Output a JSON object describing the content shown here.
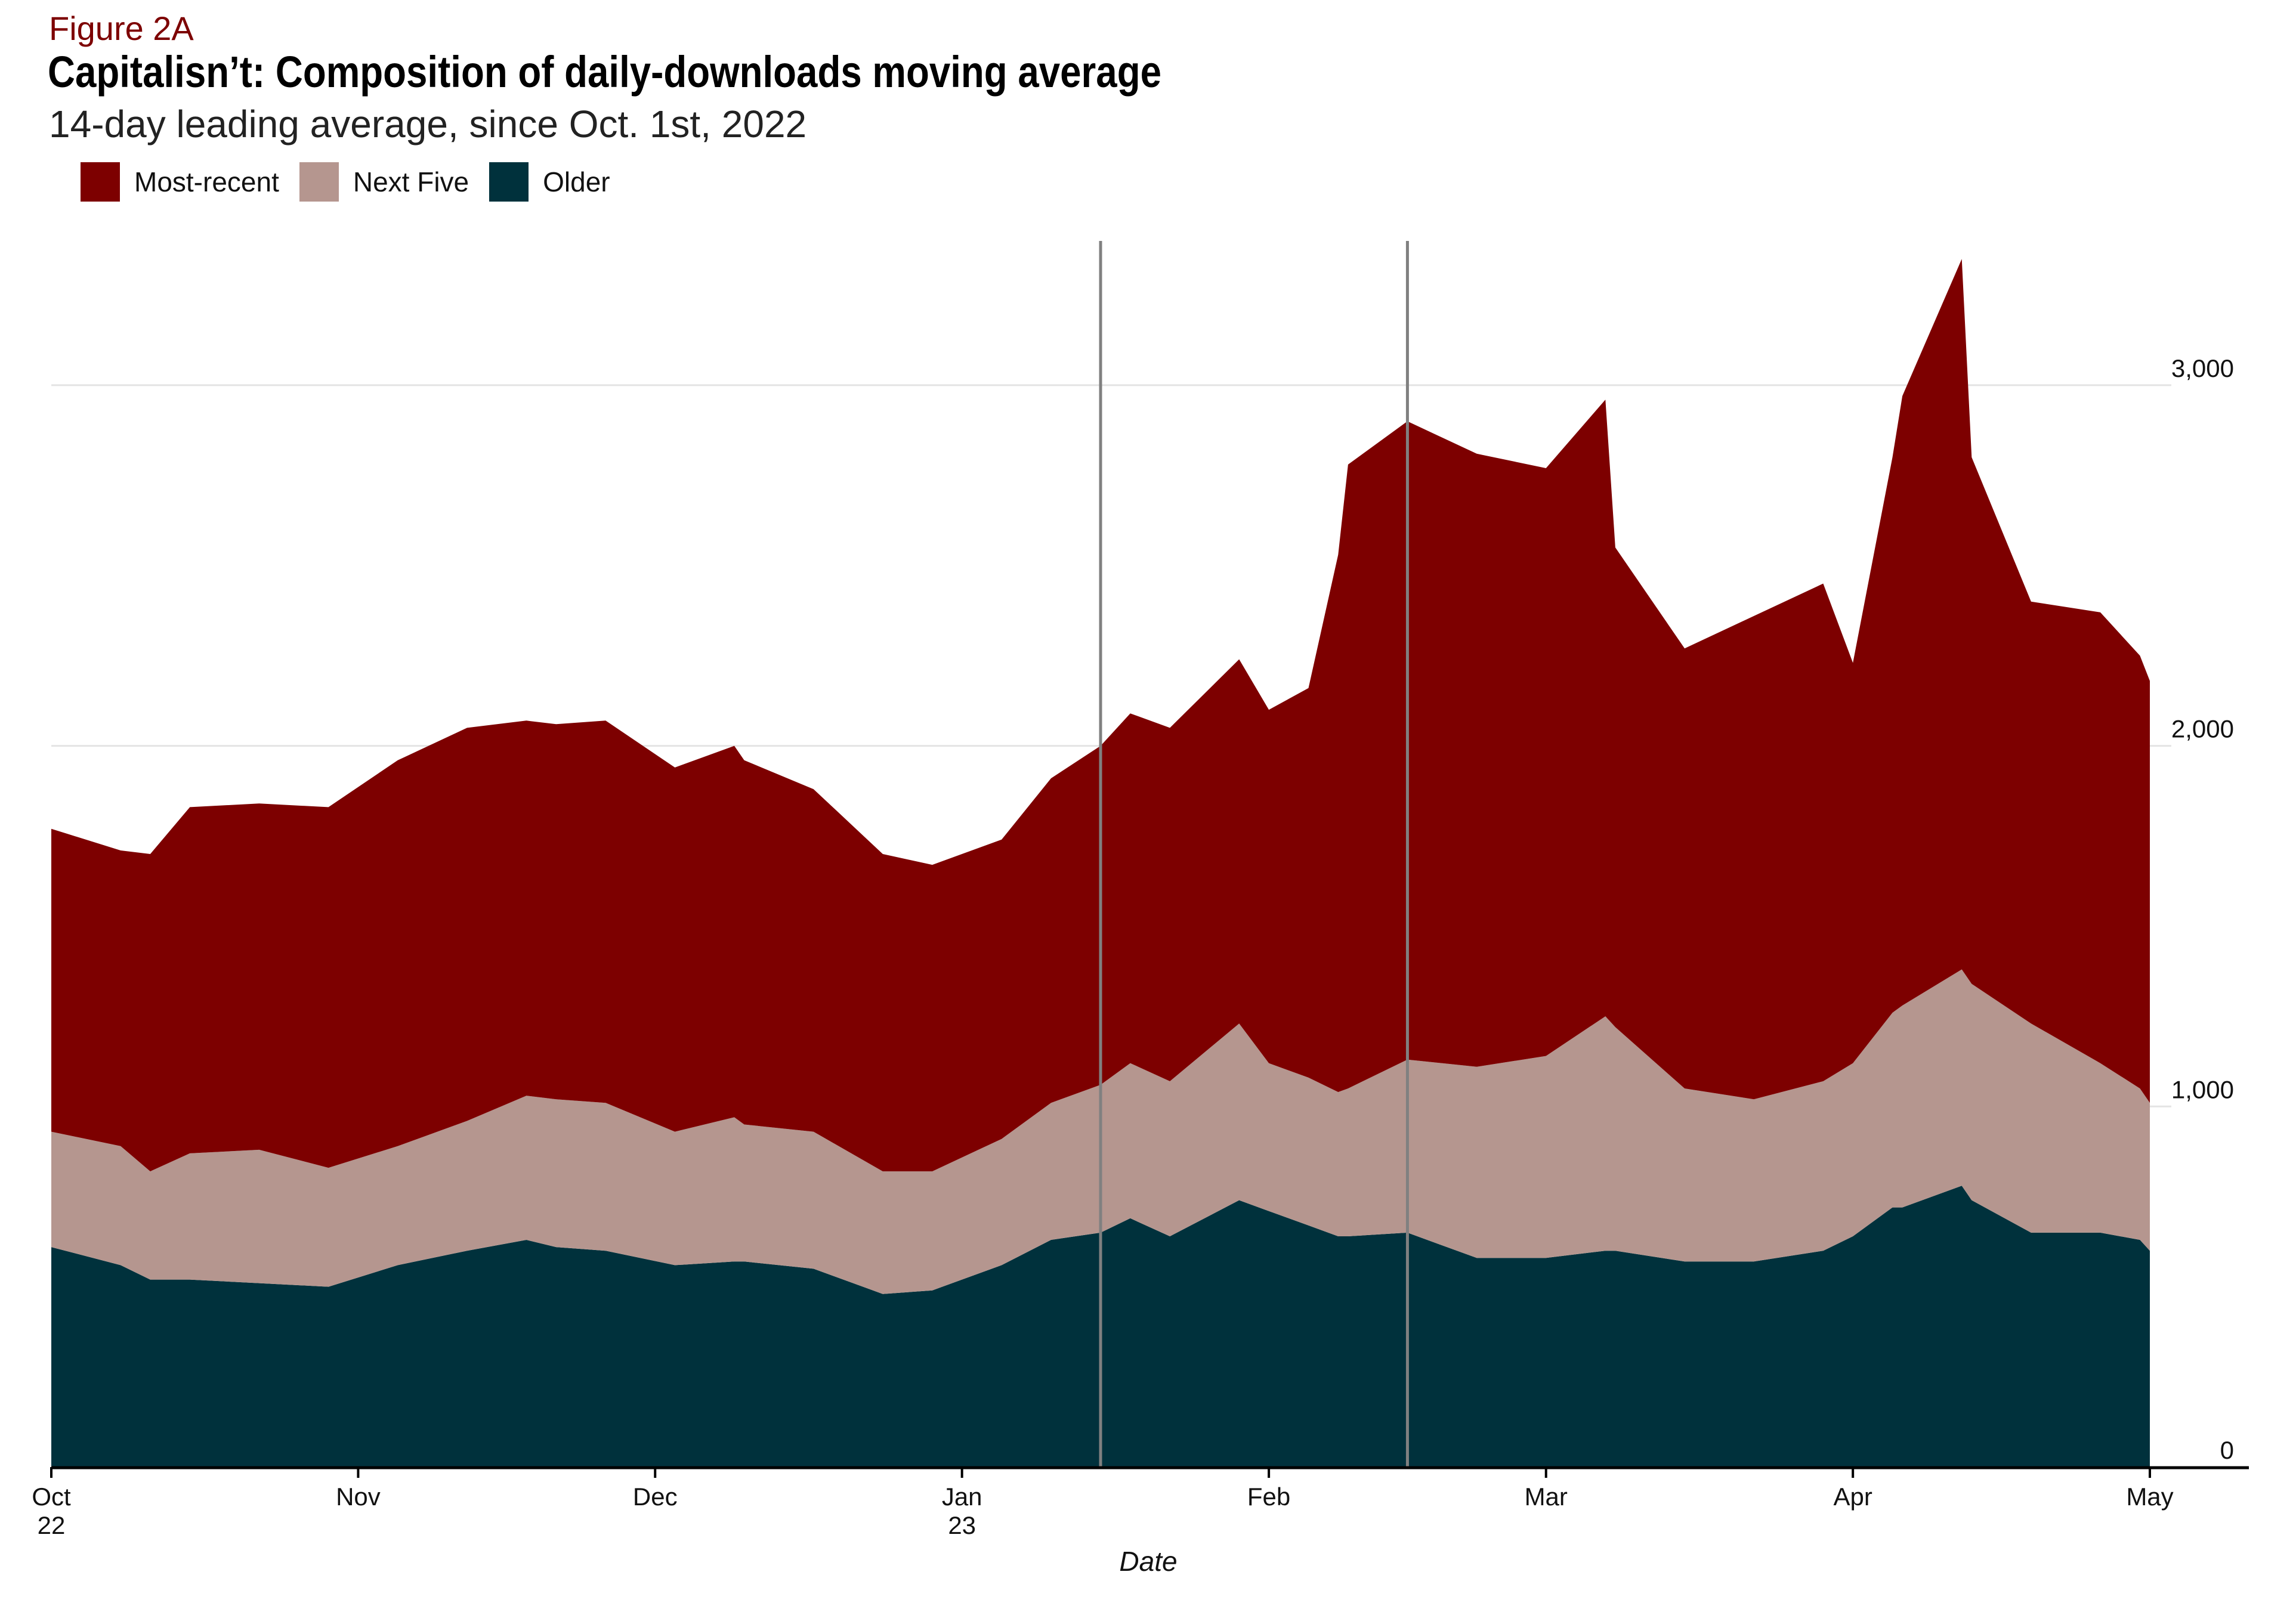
{
  "header": {
    "figure_label": "Figure 2A",
    "title": "Capitalisn’t: Composition of daily-downloads moving average",
    "subtitle": "14-day leading average, since Oct. 1st, 2022"
  },
  "legend": [
    {
      "label": "Most-recent",
      "color": "#7d0000"
    },
    {
      "label": "Next Five",
      "color": "#b5968f"
    },
    {
      "label": "Older",
      "color": "#00313c"
    }
  ],
  "chart_data": {
    "type": "area",
    "stacked": true,
    "title": "Capitalisn’t: Composition of daily-downloads moving average",
    "subtitle": "14-day leading average, since Oct. 1st, 2022",
    "xlabel": "Date",
    "ylabel": "",
    "ylim": [
      0,
      3400
    ],
    "xlim": [
      "2022-10-01",
      "2023-05-01"
    ],
    "y_ticks": [
      {
        "value": 0,
        "label": "0"
      },
      {
        "value": 1000,
        "label": "1,000"
      },
      {
        "value": 2000,
        "label": "2,000"
      },
      {
        "value": 3000,
        "label": "3,000"
      }
    ],
    "x_ticks": [
      {
        "date": "2022-10-01",
        "label": "Oct",
        "sublabel": "22"
      },
      {
        "date": "2022-11-01",
        "label": "Nov",
        "sublabel": ""
      },
      {
        "date": "2022-12-01",
        "label": "Dec",
        "sublabel": ""
      },
      {
        "date": "2023-01-01",
        "label": "Jan",
        "sublabel": "23"
      },
      {
        "date": "2023-02-01",
        "label": "Feb",
        "sublabel": ""
      },
      {
        "date": "2023-03-01",
        "label": "Mar",
        "sublabel": ""
      },
      {
        "date": "2023-04-01",
        "label": "Apr",
        "sublabel": ""
      },
      {
        "date": "2023-05-01",
        "label": "May",
        "sublabel": ""
      }
    ],
    "vlines": [
      "2023-01-15",
      "2023-02-15"
    ],
    "grid": "horizontal",
    "legend_position": "top-left",
    "x": [
      "2022-10-01",
      "2022-10-08",
      "2022-10-11",
      "2022-10-15",
      "2022-10-22",
      "2022-10-29",
      "2022-11-05",
      "2022-11-12",
      "2022-11-18",
      "2022-11-21",
      "2022-11-26",
      "2022-12-03",
      "2022-12-09",
      "2022-12-10",
      "2022-12-17",
      "2022-12-24",
      "2022-12-29",
      "2023-01-05",
      "2023-01-10",
      "2023-01-15",
      "2023-01-18",
      "2023-01-22",
      "2023-01-29",
      "2023-02-01",
      "2023-02-05",
      "2023-02-08",
      "2023-02-09",
      "2023-02-15",
      "2023-02-22",
      "2023-03-01",
      "2023-03-07",
      "2023-03-08",
      "2023-03-15",
      "2023-03-22",
      "2023-03-29",
      "2023-04-01",
      "2023-04-05",
      "2023-04-06",
      "2023-04-12",
      "2023-04-13",
      "2023-04-19",
      "2023-04-26",
      "2023-04-30",
      "2023-05-01"
    ],
    "series": [
      {
        "name": "Older",
        "color": "#00313c",
        "values": [
          610,
          560,
          520,
          520,
          510,
          500,
          560,
          600,
          630,
          610,
          600,
          560,
          570,
          570,
          550,
          480,
          490,
          560,
          630,
          650,
          690,
          640,
          740,
          710,
          670,
          640,
          640,
          650,
          580,
          580,
          600,
          600,
          570,
          570,
          600,
          640,
          720,
          720,
          780,
          740,
          650,
          650,
          630,
          600
        ]
      },
      {
        "name": "Next Five",
        "color": "#b5968f",
        "values": [
          320,
          330,
          300,
          350,
          370,
          330,
          330,
          360,
          400,
          410,
          410,
          370,
          400,
          380,
          380,
          340,
          330,
          350,
          380,
          410,
          430,
          430,
          490,
          410,
          410,
          400,
          410,
          480,
          530,
          560,
          650,
          620,
          480,
          450,
          470,
          480,
          540,
          560,
          600,
          600,
          580,
          470,
          420,
          410
        ]
      },
      {
        "name": "Most-recent",
        "color": "#7d0000",
        "values": [
          840,
          820,
          880,
          960,
          960,
          1000,
          1070,
          1090,
          1040,
          1040,
          1060,
          1010,
          1030,
          1010,
          950,
          880,
          850,
          830,
          900,
          940,
          970,
          980,
          1010,
          980,
          1080,
          1490,
          1730,
          1770,
          1700,
          1630,
          1710,
          1330,
          1220,
          1340,
          1380,
          1110,
          1540,
          1690,
          1970,
          1460,
          1170,
          1250,
          1200,
          1170
        ]
      }
    ]
  }
}
